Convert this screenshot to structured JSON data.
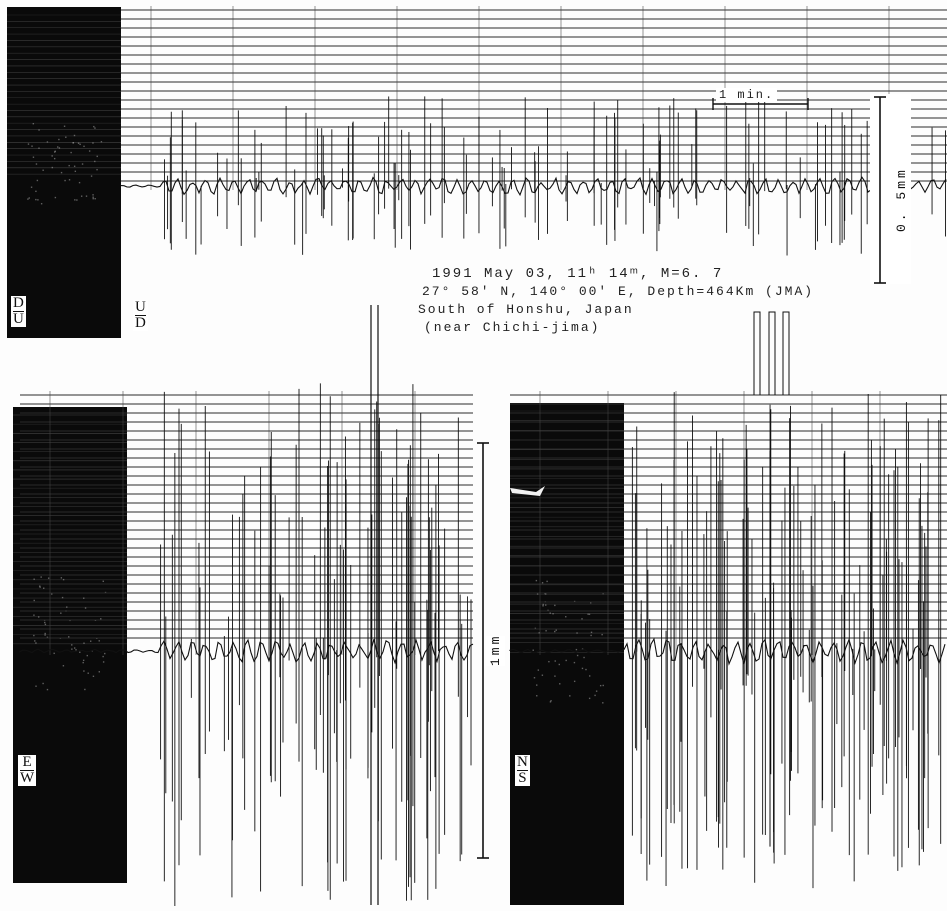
{
  "event": {
    "line1": "1991 May 03, 11ʰ 14ᵐ, M=6. 7",
    "line2": "27° 58′ N, 140° 00′ E, Depth=464Km (JMA)",
    "line3": "South of Honshu, Japan",
    "line4": "(near Chichi-jima)"
  },
  "panels": {
    "ud": {
      "label_top": "D",
      "label_bottom": "U",
      "alt_top": "U",
      "alt_bottom": "D",
      "time_scale": "1 min.",
      "amp_scale": "0. 5mm"
    },
    "ew": {
      "label_top": "E",
      "label_bottom": "W",
      "amp_scale": "1mm"
    },
    "ns": {
      "label_top": "N",
      "label_bottom": "S"
    }
  },
  "colors": {
    "ink": "#111111",
    "photo": "#0a0a0a",
    "trace": "#2a2a2a"
  }
}
